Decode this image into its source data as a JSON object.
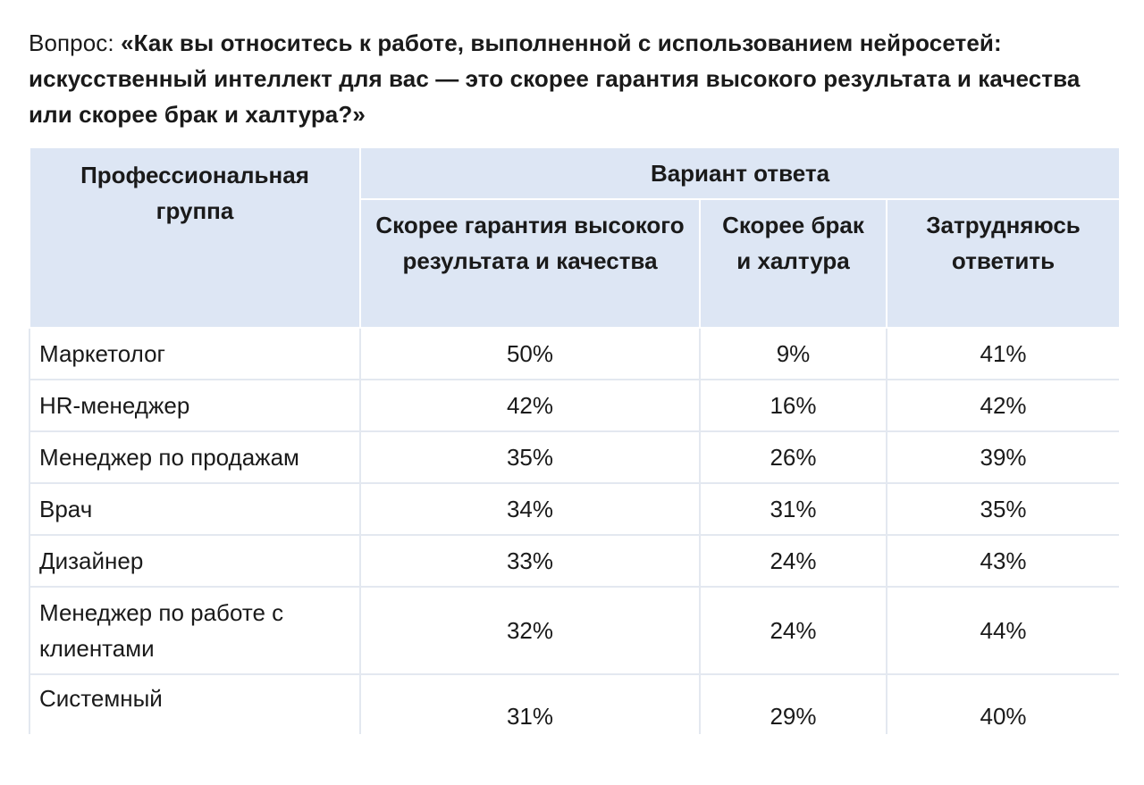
{
  "question": {
    "label": "Вопрос: ",
    "text": "«Как вы относитесь к работе, выполненной с использованием нейросетей: искусственный интеллект для вас — это скорее гарантия высокого результата и качества или скорее брак и халтура?»"
  },
  "table": {
    "group_header": "Профессиональная группа",
    "variant_header": "Вариант ответа",
    "columns": [
      "Скорее гарантия высокого результата и качества",
      "Скорее брак и халтура",
      "Затрудняюсь ответить"
    ],
    "rows": [
      {
        "group": "Маркетолог",
        "values": [
          "50%",
          "9%",
          "41%"
        ]
      },
      {
        "group": "HR-менеджер",
        "values": [
          "42%",
          "16%",
          "42%"
        ]
      },
      {
        "group": "Менеджер по продажам",
        "values": [
          "35%",
          "26%",
          "39%"
        ]
      },
      {
        "group": "Врач",
        "values": [
          "34%",
          "31%",
          "35%"
        ]
      },
      {
        "group": "Дизайнер",
        "values": [
          "33%",
          "24%",
          "43%"
        ]
      },
      {
        "group": "Менеджер по работе с клиентами",
        "values": [
          "32%",
          "24%",
          "44%"
        ]
      },
      {
        "group": "Системный",
        "values": [
          "31%",
          "29%",
          "40%"
        ]
      }
    ]
  }
}
